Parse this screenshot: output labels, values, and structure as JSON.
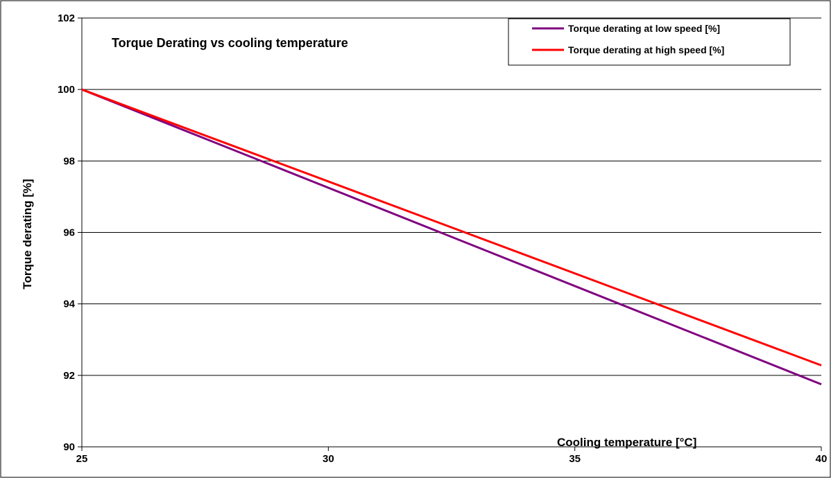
{
  "chart_data": {
    "type": "line",
    "title": "Torque Derating vs cooling temperature",
    "xlabel": "Cooling temperature    [°C]",
    "ylabel": "Torque derating [%]",
    "xlim": [
      25,
      40
    ],
    "ylim": [
      90,
      102
    ],
    "x_ticks": [
      25,
      30,
      35,
      40
    ],
    "y_ticks": [
      90,
      92,
      94,
      96,
      98,
      100,
      102
    ],
    "grid": "horizontal",
    "legend_position": "top-right",
    "series": [
      {
        "name": "Torque derating at low speed [%]",
        "color": "#800080",
        "x": [
          25,
          40
        ],
        "y": [
          100,
          91.75
        ]
      },
      {
        "name": "Torque derating at high speed  [%]",
        "color": "#ff0000",
        "x": [
          25,
          40
        ],
        "y": [
          100,
          92.28
        ]
      }
    ]
  }
}
